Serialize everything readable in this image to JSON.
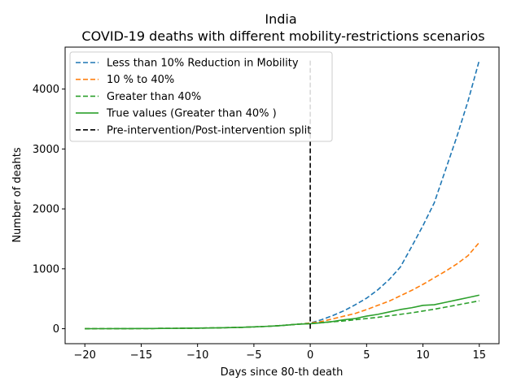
{
  "chart_data": {
    "type": "line",
    "title": "India",
    "subtitle": "COVID-19 deaths with different mobility-restrictions scenarios",
    "xlabel": "Days since 80-th death",
    "ylabel": "Number of deahts",
    "xlim": [
      -21.75,
      16.75
    ],
    "ylim": [
      -250,
      4700
    ],
    "xticks": [
      -20,
      -15,
      -10,
      -5,
      0,
      5,
      10,
      15
    ],
    "xtick_labels": [
      "−20",
      "−15",
      "−10",
      "−5",
      "0",
      "5",
      "10",
      "15"
    ],
    "yticks": [
      0,
      1000,
      2000,
      3000,
      4000
    ],
    "ytick_labels": [
      "0",
      "1000",
      "2000",
      "3000",
      "4000"
    ],
    "grid": false,
    "legend_position": "top-left",
    "series": [
      {
        "name": "Less than 10% Reduction in  Mobility",
        "style": "dashed",
        "color": "#1f77b4",
        "x": [
          -20,
          -19,
          -18,
          -17,
          -16,
          -15,
          -14,
          -13,
          -12,
          -11,
          -10,
          -9,
          -8,
          -7,
          -6,
          -5,
          -4,
          -3,
          -2,
          -1,
          0,
          1,
          2,
          3,
          4,
          5,
          6,
          7,
          8,
          9,
          10,
          11,
          12,
          13,
          14,
          15
        ],
        "y": [
          0,
          1,
          1,
          2,
          2,
          3,
          4,
          5,
          6,
          8,
          10,
          12,
          15,
          19,
          24,
          30,
          38,
          48,
          61,
          77,
          95,
          150,
          220,
          300,
          400,
          510,
          650,
          820,
          1030,
          1370,
          1720,
          2100,
          2650,
          3200,
          3800,
          4480
        ]
      },
      {
        "name": "10 % to 40%",
        "style": "dashed",
        "color": "#ff7f0e",
        "x": [
          -20,
          -19,
          -18,
          -17,
          -16,
          -15,
          -14,
          -13,
          -12,
          -11,
          -10,
          -9,
          -8,
          -7,
          -6,
          -5,
          -4,
          -3,
          -2,
          -1,
          0,
          1,
          2,
          3,
          4,
          5,
          6,
          7,
          8,
          9,
          10,
          11,
          12,
          13,
          14,
          15
        ],
        "y": [
          0,
          1,
          1,
          2,
          2,
          3,
          4,
          5,
          6,
          8,
          10,
          12,
          15,
          19,
          24,
          30,
          38,
          48,
          61,
          77,
          95,
          120,
          165,
          210,
          255,
          320,
          390,
          460,
          550,
          640,
          740,
          850,
          960,
          1080,
          1220,
          1440
        ]
      },
      {
        "name": "Greater than 40%",
        "style": "dashed",
        "color": "#2ca02c",
        "x": [
          -20,
          -19,
          -18,
          -17,
          -16,
          -15,
          -14,
          -13,
          -12,
          -11,
          -10,
          -9,
          -8,
          -7,
          -6,
          -5,
          -4,
          -3,
          -2,
          -1,
          0,
          1,
          2,
          3,
          4,
          5,
          6,
          7,
          8,
          9,
          10,
          11,
          12,
          13,
          14,
          15
        ],
        "y": [
          0,
          1,
          1,
          2,
          2,
          3,
          4,
          5,
          6,
          8,
          10,
          12,
          15,
          19,
          24,
          30,
          38,
          48,
          61,
          77,
          85,
          100,
          115,
          130,
          150,
          170,
          190,
          215,
          240,
          265,
          295,
          325,
          360,
          395,
          430,
          465
        ]
      },
      {
        "name": "True values (Greater than 40% )",
        "style": "solid",
        "color": "#2ca02c",
        "x": [
          -20,
          -19,
          -18,
          -17,
          -16,
          -15,
          -14,
          -13,
          -12,
          -11,
          -10,
          -9,
          -8,
          -7,
          -6,
          -5,
          -4,
          -3,
          -2,
          -1,
          0,
          1,
          2,
          3,
          4,
          5,
          6,
          7,
          8,
          9,
          10,
          11,
          12,
          13,
          14,
          15
        ],
        "y": [
          0,
          1,
          1,
          2,
          2,
          3,
          4,
          5,
          6,
          8,
          10,
          12,
          15,
          19,
          24,
          30,
          38,
          48,
          61,
          77,
          83,
          100,
          120,
          150,
          170,
          210,
          240,
          280,
          320,
          350,
          390,
          400,
          440,
          480,
          520,
          560
        ]
      },
      {
        "name": "Pre-intervention/Post-intervention split",
        "style": "dashed",
        "color": "#000000",
        "x": [
          0,
          0
        ],
        "y": [
          0,
          4500
        ]
      }
    ]
  }
}
